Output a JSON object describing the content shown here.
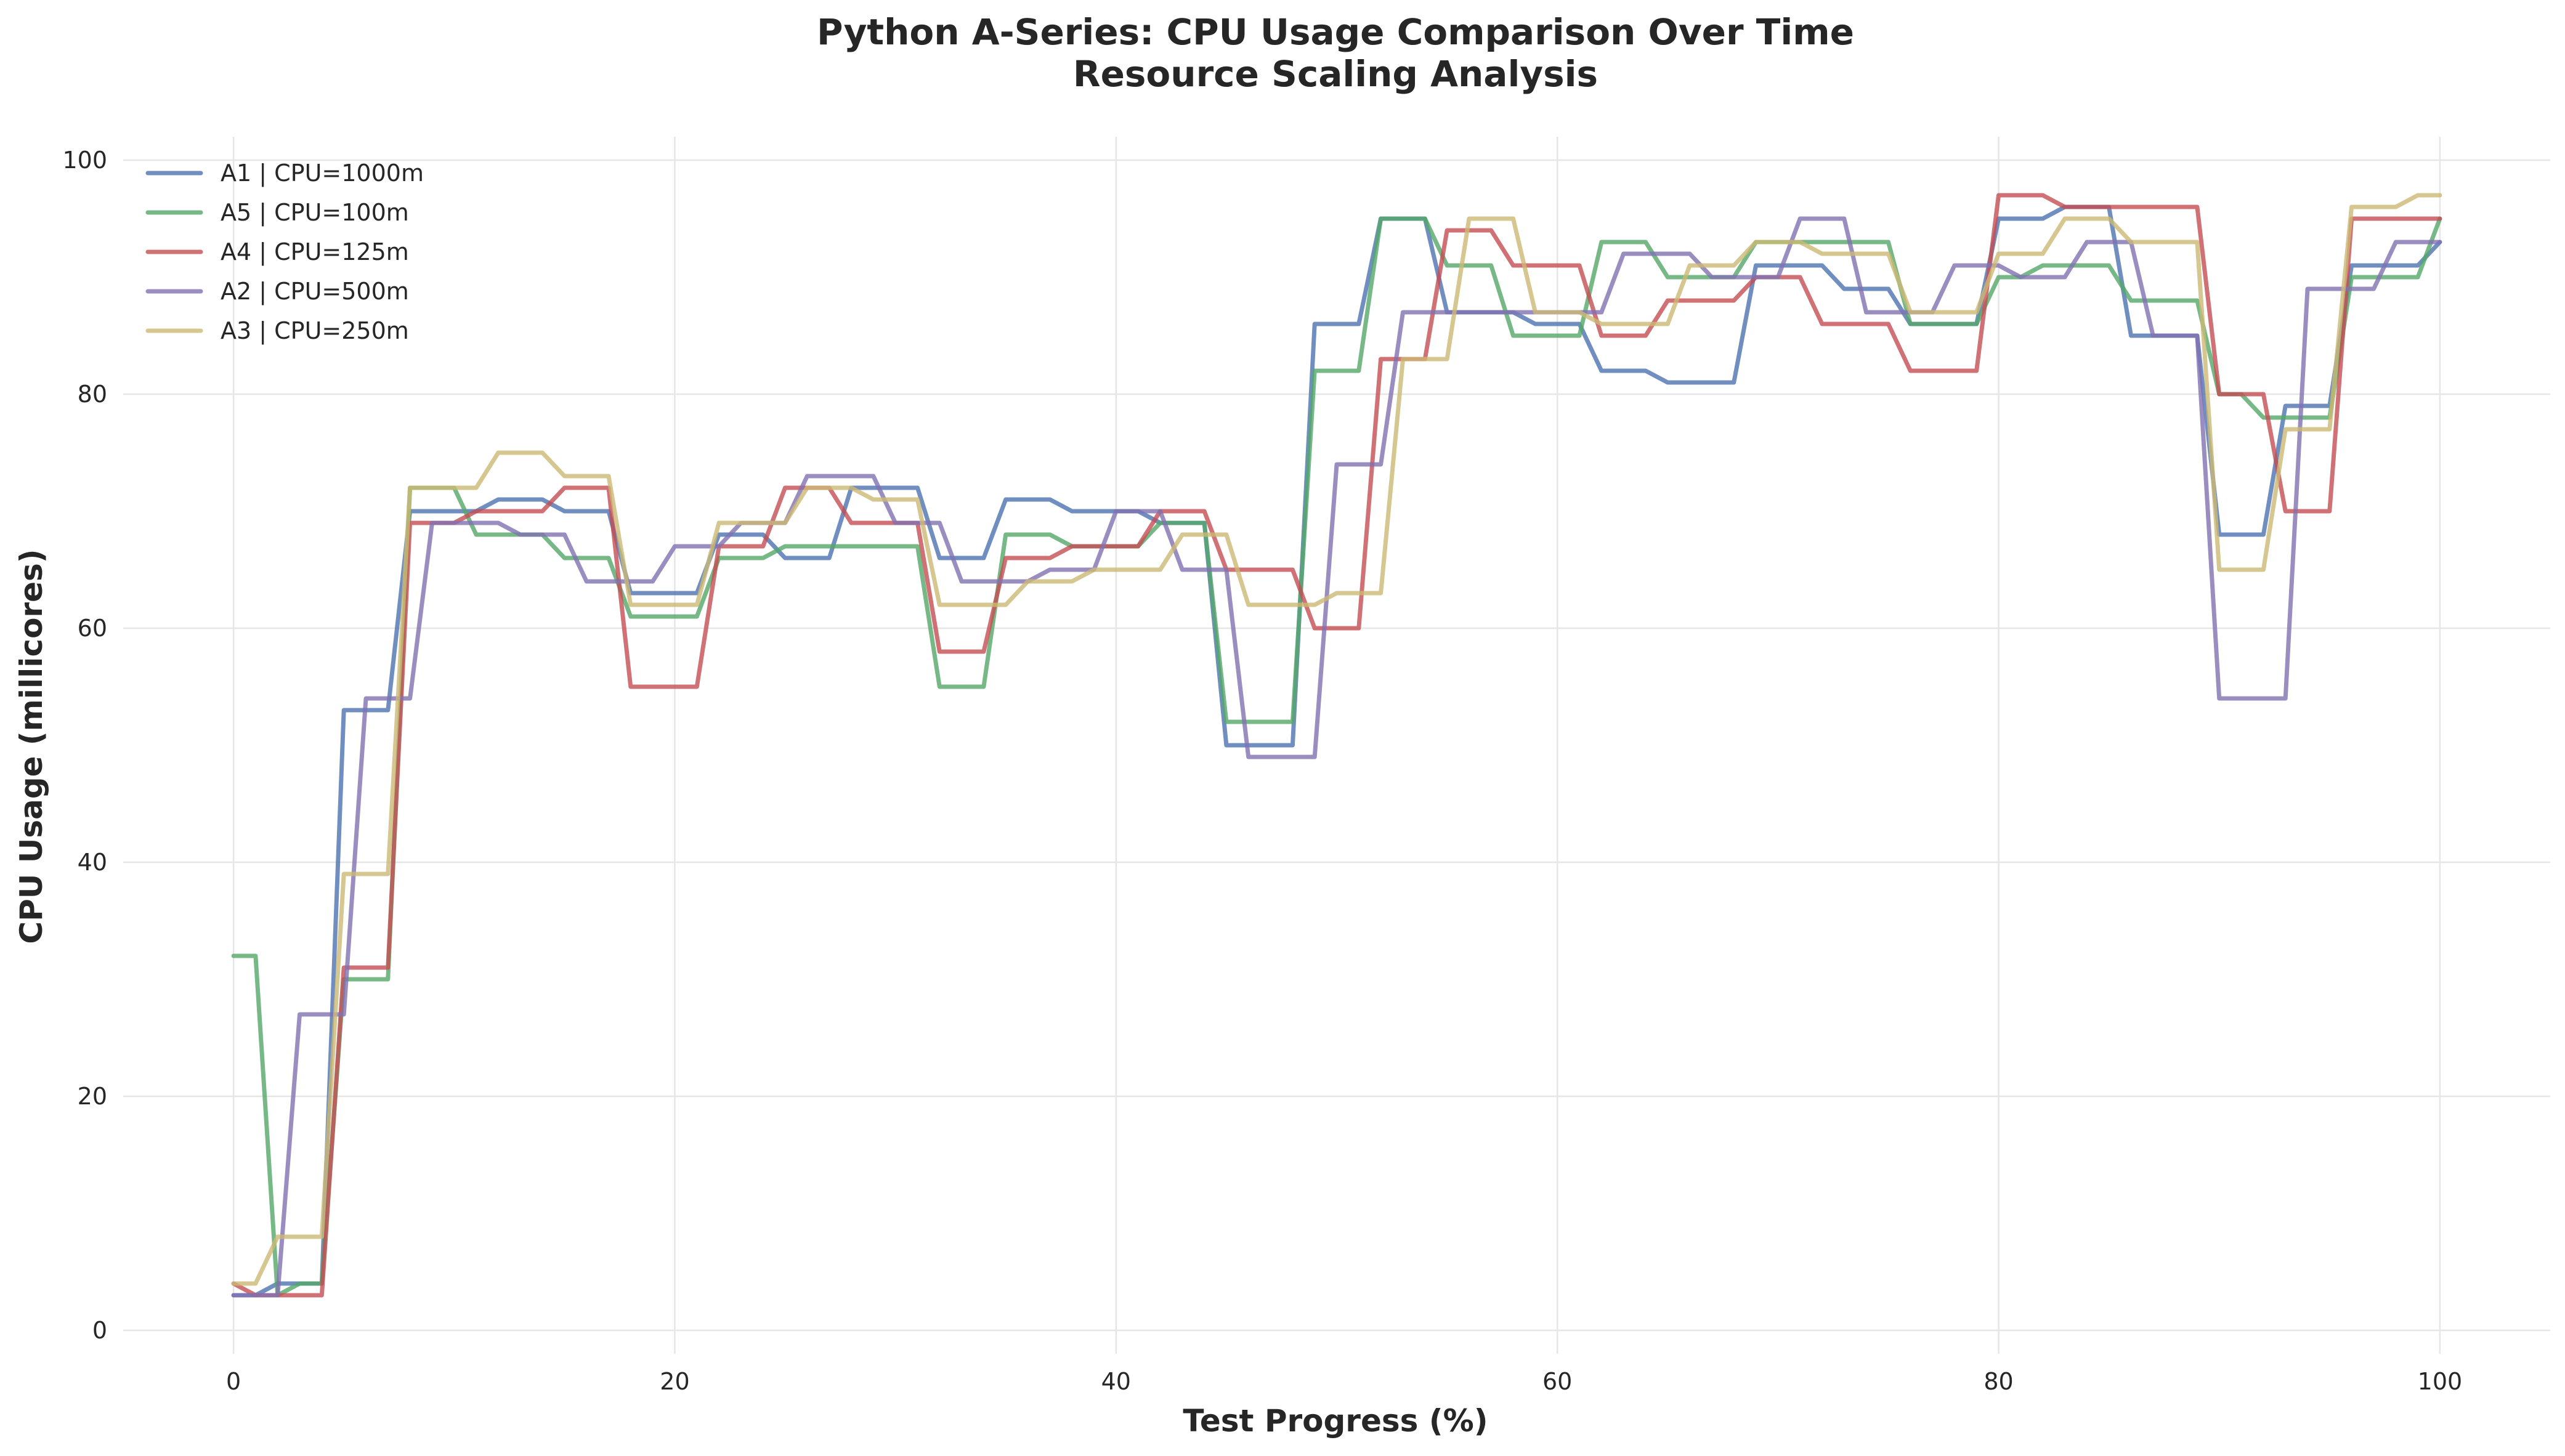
{
  "chart_data": {
    "type": "line",
    "title": "Python A-Series: CPU Usage Comparison Over Time",
    "subtitle": "Resource Scaling Analysis",
    "xlabel": "Test Progress (%)",
    "ylabel": "CPU Usage (millicores)",
    "xlim": [
      -5,
      105
    ],
    "ylim": [
      -2,
      102
    ],
    "x_ticks": [
      0,
      20,
      40,
      60,
      80,
      100
    ],
    "y_ticks": [
      0,
      20,
      40,
      60,
      80,
      100
    ],
    "grid": true,
    "legend_position": "upper-left",
    "x": [
      0,
      1,
      2,
      3,
      4,
      5,
      6,
      7,
      8,
      9,
      10,
      11,
      12,
      13,
      14,
      15,
      16,
      17,
      18,
      19,
      20,
      21,
      22,
      23,
      24,
      25,
      26,
      27,
      28,
      29,
      30,
      31,
      32,
      33,
      34,
      35,
      36,
      37,
      38,
      39,
      40,
      41,
      42,
      43,
      44,
      45,
      46,
      47,
      48,
      49,
      50,
      51,
      52,
      53,
      54,
      55,
      56,
      57,
      58,
      59,
      60,
      61,
      62,
      63,
      64,
      65,
      66,
      67,
      68,
      69,
      70,
      71,
      72,
      73,
      74,
      75,
      76,
      77,
      78,
      79,
      80,
      81,
      82,
      83,
      84,
      85,
      86,
      87,
      88,
      89,
      90,
      91,
      92,
      93,
      94,
      95,
      96,
      97,
      98,
      99,
      100
    ],
    "series": [
      {
        "name": "A1 | CPU=1000m",
        "color": "#4c72b0",
        "values": [
          3,
          3,
          4,
          4,
          4,
          53,
          53,
          53,
          70,
          70,
          70,
          70,
          71,
          71,
          71,
          70,
          70,
          70,
          63,
          63,
          63,
          63,
          68,
          68,
          68,
          66,
          66,
          66,
          72,
          72,
          72,
          72,
          66,
          66,
          66,
          71,
          71,
          71,
          70,
          70,
          70,
          70,
          69,
          69,
          69,
          50,
          50,
          50,
          50,
          86,
          86,
          86,
          95,
          95,
          95,
          87,
          87,
          87,
          87,
          86,
          86,
          86,
          82,
          82,
          82,
          81,
          81,
          81,
          81,
          91,
          91,
          91,
          91,
          89,
          89,
          89,
          86,
          86,
          86,
          86,
          95,
          95,
          95,
          96,
          96,
          96,
          85,
          85,
          85,
          85,
          68,
          68,
          68,
          79,
          79,
          79,
          91,
          91,
          91,
          91,
          93
        ]
      },
      {
        "name": "A5 | CPU=100m",
        "color": "#55a868",
        "values": [
          32,
          32,
          3,
          4,
          4,
          30,
          30,
          30,
          72,
          72,
          72,
          68,
          68,
          68,
          68,
          66,
          66,
          66,
          61,
          61,
          61,
          61,
          66,
          66,
          66,
          67,
          67,
          67,
          67,
          67,
          67,
          67,
          55,
          55,
          55,
          68,
          68,
          68,
          67,
          67,
          67,
          67,
          69,
          69,
          69,
          52,
          52,
          52,
          52,
          82,
          82,
          82,
          95,
          95,
          95,
          91,
          91,
          91,
          85,
          85,
          85,
          85,
          93,
          93,
          93,
          90,
          90,
          90,
          90,
          93,
          93,
          93,
          93,
          93,
          93,
          93,
          86,
          86,
          86,
          86,
          90,
          90,
          91,
          91,
          91,
          91,
          88,
          88,
          88,
          88,
          80,
          80,
          78,
          78,
          78,
          78,
          90,
          90,
          90,
          90,
          95
        ]
      },
      {
        "name": "A4 | CPU=125m",
        "color": "#c44e52",
        "values": [
          4,
          3,
          3,
          3,
          3,
          31,
          31,
          31,
          69,
          69,
          69,
          70,
          70,
          70,
          70,
          72,
          72,
          72,
          55,
          55,
          55,
          55,
          67,
          67,
          67,
          72,
          72,
          72,
          69,
          69,
          69,
          69,
          58,
          58,
          58,
          66,
          66,
          66,
          67,
          67,
          67,
          67,
          70,
          70,
          70,
          65,
          65,
          65,
          65,
          60,
          60,
          60,
          83,
          83,
          83,
          94,
          94,
          94,
          91,
          91,
          91,
          91,
          85,
          85,
          85,
          88,
          88,
          88,
          88,
          90,
          90,
          90,
          86,
          86,
          86,
          86,
          82,
          82,
          82,
          82,
          97,
          97,
          97,
          96,
          96,
          96,
          96,
          96,
          96,
          96,
          80,
          80,
          80,
          70,
          70,
          70,
          95,
          95,
          95,
          95,
          95
        ]
      },
      {
        "name": "A2 | CPU=500m",
        "color": "#8172b2",
        "values": [
          3,
          3,
          3,
          27,
          27,
          27,
          54,
          54,
          54,
          69,
          69,
          69,
          69,
          68,
          68,
          68,
          64,
          64,
          64,
          64,
          67,
          67,
          67,
          69,
          69,
          69,
          73,
          73,
          73,
          73,
          69,
          69,
          69,
          64,
          64,
          64,
          64,
          65,
          65,
          65,
          70,
          70,
          70,
          65,
          65,
          65,
          49,
          49,
          49,
          49,
          74,
          74,
          74,
          87,
          87,
          87,
          87,
          87,
          87,
          87,
          87,
          87,
          87,
          92,
          92,
          92,
          92,
          90,
          90,
          90,
          90,
          95,
          95,
          95,
          87,
          87,
          87,
          87,
          91,
          91,
          91,
          90,
          90,
          90,
          93,
          93,
          93,
          85,
          85,
          85,
          54,
          54,
          54,
          54,
          89,
          89,
          89,
          89,
          93,
          93,
          93
        ]
      },
      {
        "name": "A3 | CPU=250m",
        "color": "#ccb974",
        "values": [
          4,
          4,
          8,
          8,
          8,
          39,
          39,
          39,
          72,
          72,
          72,
          72,
          75,
          75,
          75,
          73,
          73,
          73,
          62,
          62,
          62,
          62,
          69,
          69,
          69,
          69,
          72,
          72,
          72,
          71,
          71,
          71,
          62,
          62,
          62,
          62,
          64,
          64,
          64,
          65,
          65,
          65,
          65,
          68,
          68,
          68,
          62,
          62,
          62,
          62,
          63,
          63,
          63,
          83,
          83,
          83,
          95,
          95,
          95,
          87,
          87,
          87,
          86,
          86,
          86,
          86,
          91,
          91,
          91,
          93,
          93,
          93,
          92,
          92,
          92,
          92,
          87,
          87,
          87,
          87,
          92,
          92,
          92,
          95,
          95,
          95,
          93,
          93,
          93,
          93,
          65,
          65,
          65,
          77,
          77,
          77,
          96,
          96,
          96,
          97,
          97
        ]
      }
    ]
  }
}
